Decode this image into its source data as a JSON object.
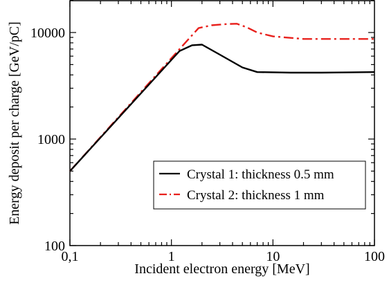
{
  "chart_data": {
    "type": "line",
    "xlabel": "Incident electron energy [MeV]",
    "ylabel": "Energy deposit per charge [GeV/pC]",
    "x_scale": "log",
    "y_scale": "log",
    "xlim": [
      0.1,
      100
    ],
    "ylim": [
      100,
      20000
    ],
    "x_ticks": [
      0.1,
      1,
      10,
      100
    ],
    "x_tick_labels": [
      "0,1",
      "1",
      "10",
      "100"
    ],
    "y_ticks": [
      100,
      1000,
      10000
    ],
    "y_tick_labels": [
      "100",
      "1000",
      "10000"
    ],
    "grid": false,
    "legend_position": "bottom-right",
    "series": [
      {
        "name": "Crystal 1: thickness 0.5 mm",
        "color": "#000000",
        "dash": "solid",
        "x": [
          0.1,
          1.2,
          1.6,
          2.0,
          3.0,
          5.0,
          7.0,
          15.0,
          30.0,
          100.0
        ],
        "y": [
          500,
          6700,
          7600,
          7700,
          6200,
          4700,
          4250,
          4200,
          4200,
          4250
        ]
      },
      {
        "name": "Crystal 2: thickness 1 mm",
        "color": "#e8201c",
        "dash": "dash-dot",
        "x": [
          0.1,
          1.3,
          1.85,
          2.5,
          3.5,
          4.4,
          5.5,
          7.0,
          10.0,
          20.0,
          50.0,
          100.0
        ],
        "y": [
          500,
          7600,
          11000,
          11700,
          12000,
          12100,
          11200,
          10000,
          9200,
          8700,
          8700,
          8700
        ]
      }
    ]
  }
}
